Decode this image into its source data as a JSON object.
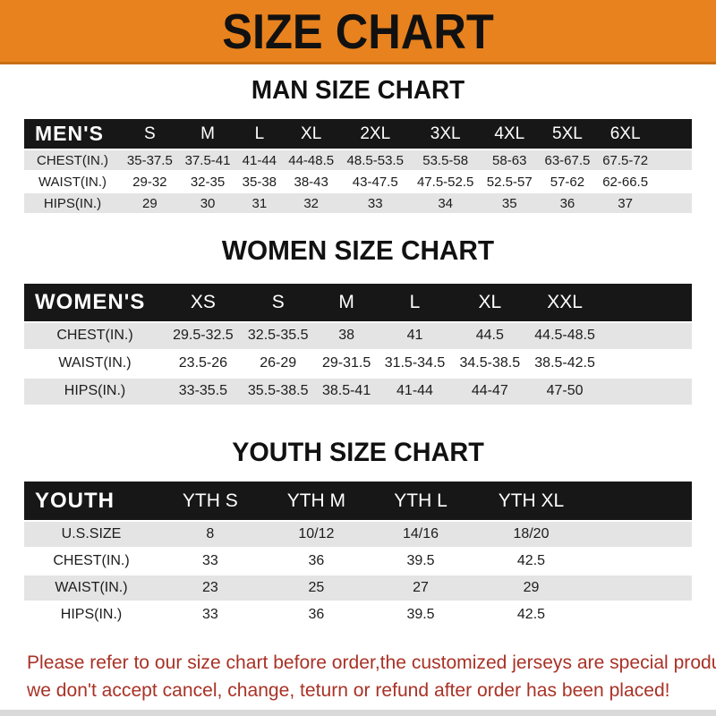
{
  "banner": {
    "title": "SIZE CHART"
  },
  "sections": [
    {
      "heading": "MAN SIZE CHART",
      "group_label": "MEN'S",
      "columns": [
        "S",
        "M",
        "L",
        "XL",
        "2XL",
        "3XL",
        "4XL",
        "5XL",
        "6XL"
      ],
      "rows": [
        {
          "label": "CHEST(IN.)",
          "values": [
            "35-37.5",
            "37.5-41",
            "41-44",
            "44-48.5",
            "48.5-53.5",
            "53.5-58",
            "58-63",
            "63-67.5",
            "67.5-72"
          ]
        },
        {
          "label": "WAIST(IN.)",
          "values": [
            "29-32",
            "32-35",
            "35-38",
            "38-43",
            "43-47.5",
            "47.5-52.5",
            "52.5-57",
            "57-62",
            "62-66.5"
          ]
        },
        {
          "label": "HIPS(IN.)",
          "values": [
            "29",
            "30",
            "31",
            "32",
            "33",
            "34",
            "35",
            "36",
            "37"
          ]
        }
      ]
    },
    {
      "heading": "WOMEN SIZE CHART",
      "group_label": "WOMEN'S",
      "columns": [
        "XS",
        "S",
        "M",
        "L",
        "XL",
        "XXL"
      ],
      "rows": [
        {
          "label": "CHEST(IN.)",
          "values": [
            "29.5-32.5",
            "32.5-35.5",
            "38",
            "41",
            "44.5",
            "44.5-48.5"
          ]
        },
        {
          "label": "WAIST(IN.)",
          "values": [
            "23.5-26",
            "26-29",
            "29-31.5",
            "31.5-34.5",
            "34.5-38.5",
            "38.5-42.5"
          ]
        },
        {
          "label": "HIPS(IN.)",
          "values": [
            "33-35.5",
            "35.5-38.5",
            "38.5-41",
            "41-44",
            "44-47",
            "47-50"
          ]
        }
      ]
    },
    {
      "heading": "YOUTH SIZE CHART",
      "group_label": "YOUTH",
      "columns": [
        "YTH S",
        "YTH M",
        "YTH L",
        "YTH XL"
      ],
      "rows": [
        {
          "label": "U.S.SIZE",
          "values": [
            "8",
            "10/12",
            "14/16",
            "18/20"
          ]
        },
        {
          "label": "CHEST(IN.)",
          "values": [
            "33",
            "36",
            "39.5",
            "42.5"
          ]
        },
        {
          "label": "WAIST(IN.)",
          "values": [
            "23",
            "25",
            "27",
            "29"
          ]
        },
        {
          "label": "HIPS(IN.)",
          "values": [
            "33",
            "36",
            "39.5",
            "42.5"
          ]
        }
      ]
    }
  ],
  "footer": {
    "line1": "Please refer to our size chart before order,the customized jerseys are special products,",
    "line2": "we don't accept cancel, change, teturn or refund after order has been placed!"
  },
  "colors": {
    "banner_orange": "#E8821E",
    "header_black": "#171717",
    "row_gray": "#E4E4E4",
    "footer_red": "#A93226"
  }
}
